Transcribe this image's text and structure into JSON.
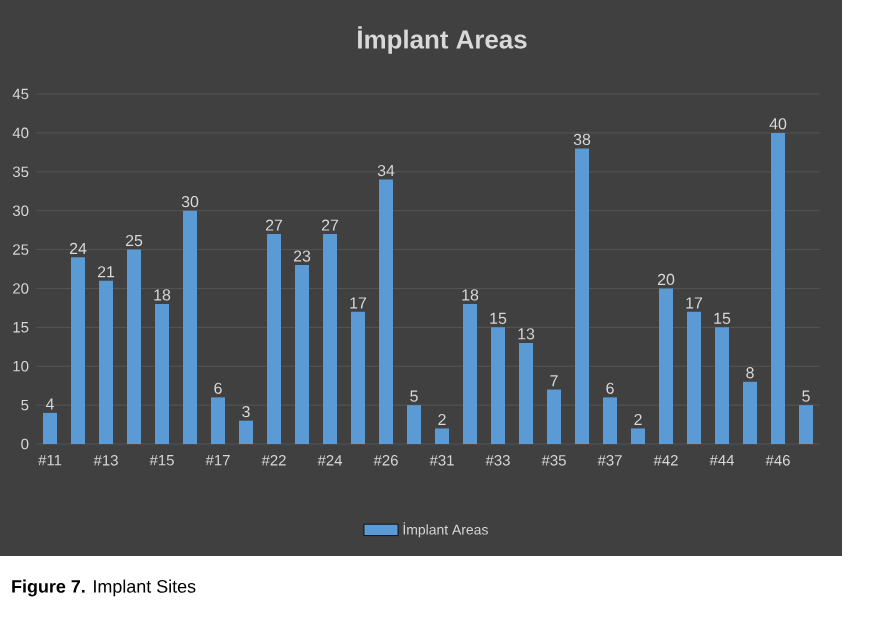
{
  "chart_data": {
    "type": "bar",
    "title": "İmplant Areas",
    "categories": [
      "#11",
      null,
      "#13",
      null,
      "#15",
      null,
      "#17",
      null,
      "#22",
      null,
      "#24",
      null,
      "#26",
      null,
      "#31",
      null,
      "#33",
      null,
      "#35",
      null,
      "#37",
      null,
      "#42",
      null,
      "#44",
      null,
      "#46",
      null
    ],
    "series": [
      {
        "name": "İmplant Areas",
        "color": "#5b9bd5",
        "values": [
          4,
          24,
          21,
          25,
          18,
          30,
          6,
          3,
          27,
          23,
          27,
          17,
          34,
          5,
          2,
          18,
          15,
          13,
          7,
          38,
          6,
          2,
          20,
          17,
          15,
          8,
          40,
          5
        ]
      }
    ],
    "ylim": [
      0,
      45
    ],
    "yticks": [
      0,
      5,
      10,
      15,
      20,
      25,
      30,
      35,
      40,
      45
    ],
    "grid": "y",
    "legend": "bottom",
    "data_labels": true,
    "annotations": [
      "**Figure 7.** Implant Sites"
    ]
  }
}
